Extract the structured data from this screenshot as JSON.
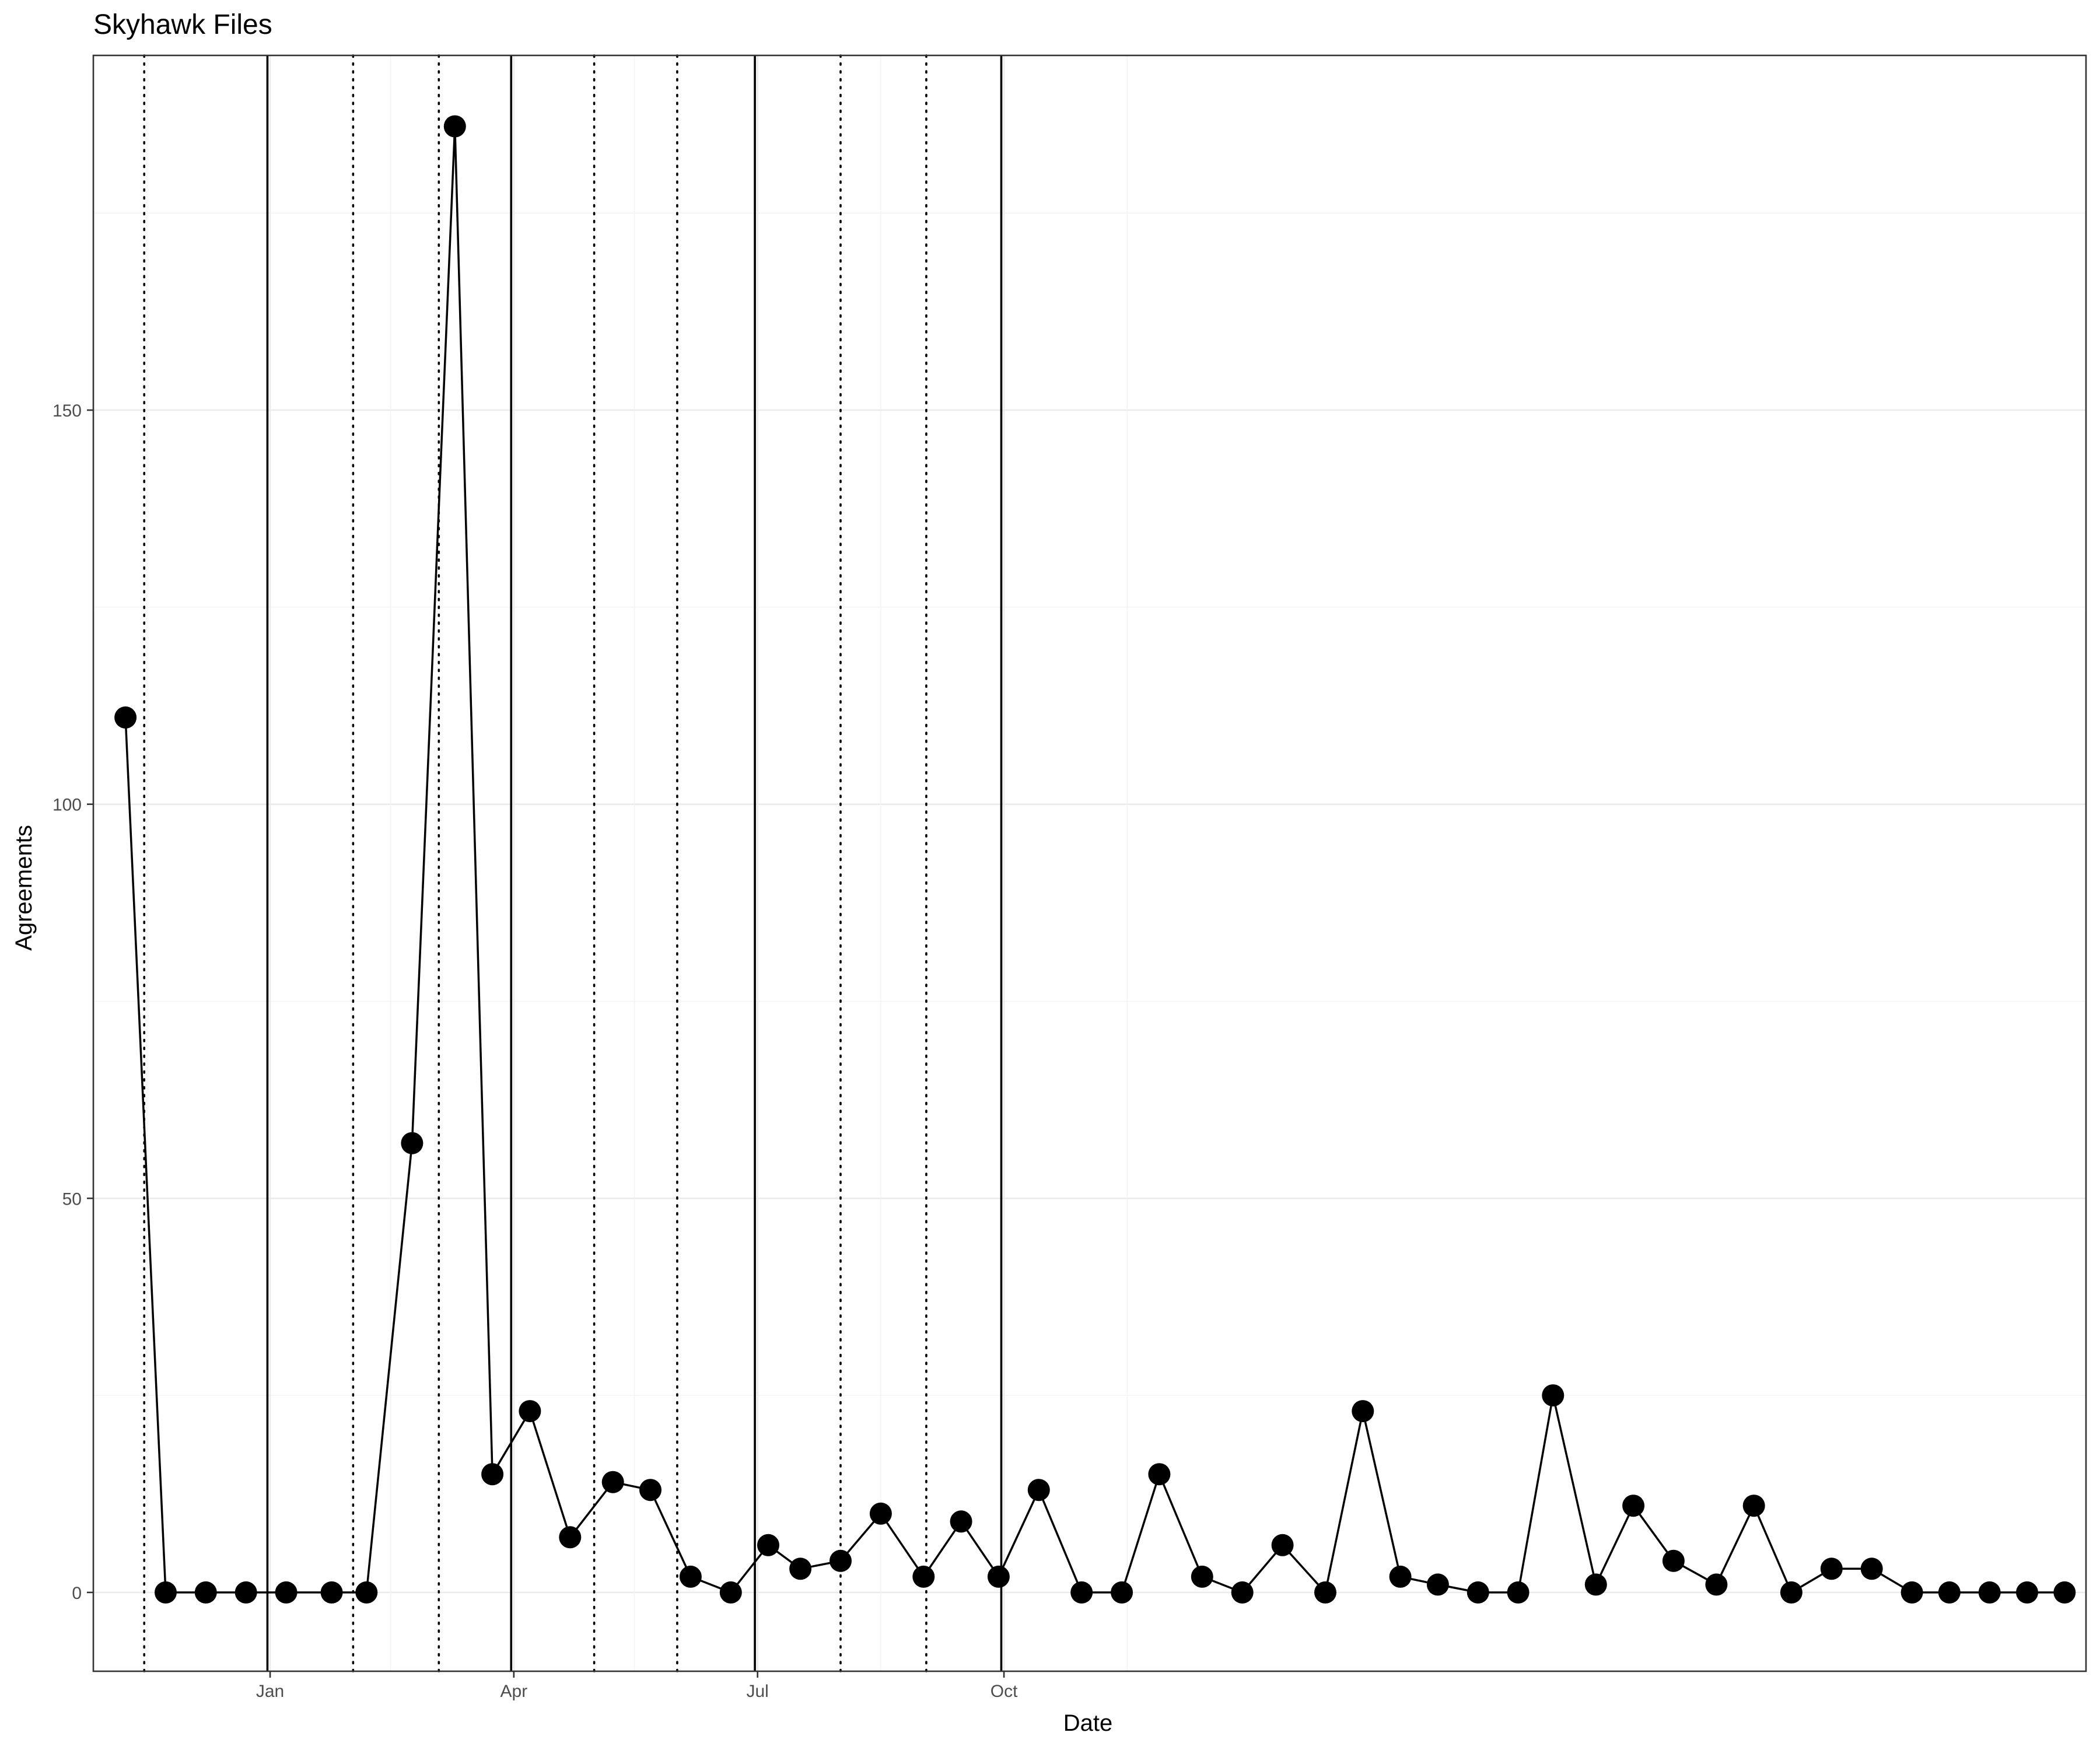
{
  "chart_data": {
    "type": "line",
    "title": "Skyhawk Files",
    "xlabel": "Date",
    "ylabel": "Agreements",
    "x_ticks": [
      "Jan",
      "Apr",
      "Jul",
      "Oct"
    ],
    "y_ticks": [
      0,
      50,
      100,
      150
    ],
    "grid": true,
    "series": [
      {
        "x": [
          "2019-11-08",
          "2019-11-23",
          "2019-12-08",
          "2019-12-23",
          "2020-01-07",
          "2020-01-24",
          "2020-02-06",
          "2020-02-23",
          "2020-03-10",
          "2020-03-24",
          "2020-04-07",
          "2020-04-22",
          "2020-05-08",
          "2020-05-22",
          "2020-06-06",
          "2020-06-21",
          "2020-07-05",
          "2020-07-17",
          "2020-08-01",
          "2020-08-16",
          "2020-09-01",
          "2020-09-15",
          "2020-09-29",
          "2020-10-14",
          "2020-10-30",
          "2020-11-14",
          "2020-11-28",
          "2020-12-14",
          "2020-12-29",
          "2021-01-13",
          "2021-01-29",
          "2021-02-12",
          "2021-02-26",
          "2021-03-12",
          "2021-03-27",
          "2021-04-11",
          "2021-04-24",
          "2021-05-10",
          "2021-05-24",
          "2021-06-08",
          "2021-06-24",
          "2021-07-08",
          "2021-07-22",
          "2021-08-06",
          "2021-08-21",
          "2021-09-05",
          "2021-09-19",
          "2021-10-04",
          "2021-10-18",
          "2021-11-01"
        ],
        "values": [
          111,
          0,
          0,
          0,
          0,
          0,
          0,
          57,
          186,
          15,
          23,
          7,
          14,
          13,
          2,
          0,
          6,
          3,
          4,
          10,
          2,
          9,
          2,
          13,
          0,
          0,
          15,
          2,
          0,
          6,
          0,
          23,
          2,
          1,
          0,
          0,
          25,
          1,
          11,
          4,
          1,
          11,
          0,
          3,
          3,
          0,
          0,
          0,
          0,
          0
        ]
      }
    ],
    "vertical_lines": {
      "solid": [
        "Dec 31",
        "Mar 31",
        "Jun 30",
        "Sep 30"
      ],
      "dotted": [
        "Nov 15",
        "Feb 1",
        "Mar 4",
        "May 1",
        "Jun 1",
        "Aug 1",
        "Sep 2"
      ]
    },
    "ylim": [
      -10,
      195
    ]
  }
}
